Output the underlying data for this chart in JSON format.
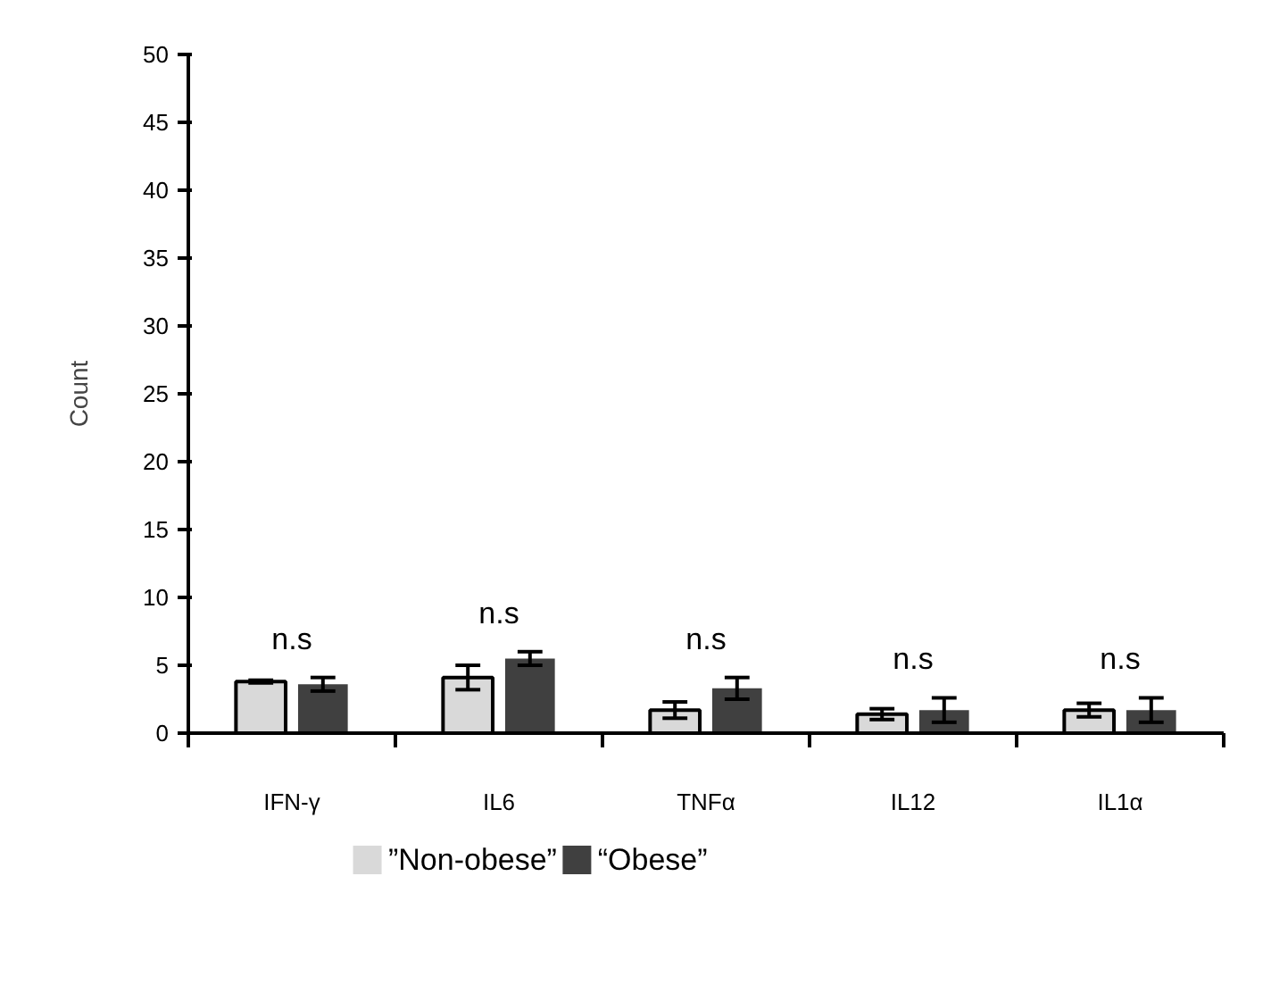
{
  "chart_data": {
    "type": "bar",
    "ylabel": "Count",
    "categories": [
      "IFN-γ",
      "IL6",
      "TNFα",
      "IL12",
      "IL1α"
    ],
    "series": [
      {
        "name": "”Non-obese”",
        "color": "#d9d9d9",
        "values": [
          3.8,
          4.1,
          1.7,
          1.4,
          1.7
        ],
        "errors": [
          0.1,
          0.9,
          0.6,
          0.4,
          0.5
        ]
      },
      {
        "name": "“Obese”",
        "color": "#404040",
        "values": [
          3.6,
          5.5,
          3.3,
          1.7,
          1.7
        ],
        "errors": [
          0.5,
          0.5,
          0.8,
          0.9,
          0.9
        ]
      }
    ],
    "ylim": [
      0,
      50
    ],
    "yticks": [
      0,
      5,
      10,
      15,
      20,
      25,
      30,
      35,
      40,
      45,
      50
    ],
    "grid": false,
    "legend": "bottom",
    "annotations": [
      "n.s",
      "n.s",
      "n.s",
      "n.s",
      "n.s"
    ]
  }
}
